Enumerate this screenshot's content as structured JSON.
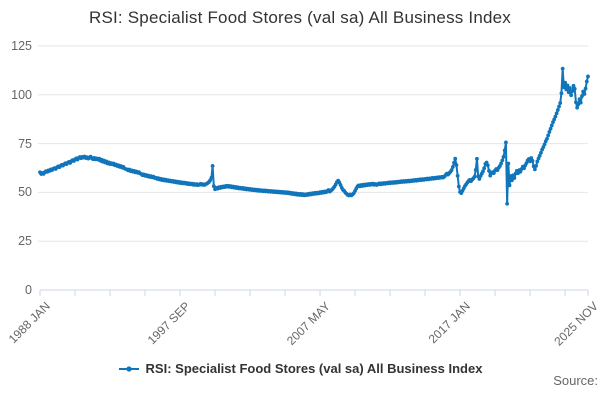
{
  "title": "RSI: Specialist Food Stores (val sa) All Business Index",
  "legend": {
    "label": "RSI: Specialist Food Stores (val sa) All Business Index"
  },
  "source_label": "Source:",
  "colors": {
    "series": "#1175bb",
    "grid": "#e6e6e6",
    "axis": "#ccd6eb",
    "axis_label": "#666666",
    "title_text": "#333333",
    "legend_text": "#333333",
    "source_text": "#666666"
  },
  "chart_data": {
    "type": "line",
    "title": "RSI: Specialist Food Stores (val sa) All Business Index",
    "xlabel": "",
    "ylabel": "",
    "frequency": "monthly",
    "x_range": [
      "1988 JAN",
      "2025 NOV"
    ],
    "ylim": [
      0,
      125
    ],
    "y_ticks": [
      0,
      25,
      50,
      75,
      100,
      125
    ],
    "grid": "horizontal",
    "legend_position": "bottom",
    "x_minor_tick_months": [
      0,
      29,
      58,
      87,
      116,
      145,
      174,
      203,
      232,
      261,
      290,
      319,
      348,
      377,
      406,
      435,
      454
    ],
    "x_tick_labels": [
      {
        "month": 0,
        "label": "1988 JAN"
      },
      {
        "month": 116,
        "label": "1997 SEP"
      },
      {
        "month": 232,
        "label": "2007 MAY"
      },
      {
        "month": 348,
        "label": "2017 JAN"
      },
      {
        "month": 454,
        "label": "2025 NOV"
      }
    ],
    "series": [
      {
        "name": "RSI: Specialist Food Stores (val sa) All Business Index",
        "values": [
          60.3,
          59.4,
          59.9,
          59.5,
          60.4,
          60.9,
          60.5,
          61.3,
          61.0,
          61.8,
          61.4,
          62.1,
          62.4,
          62.0,
          62.8,
          63.3,
          62.9,
          63.6,
          64.1,
          63.7,
          64.4,
          64.9,
          64.5,
          65.2,
          65.6,
          65.1,
          66.0,
          66.5,
          66.1,
          66.9,
          67.4,
          66.8,
          67.6,
          68.1,
          67.5,
          68.2,
          67.8,
          68.4,
          67.6,
          68.0,
          67.3,
          67.9,
          68.3,
          67.5,
          67.0,
          67.7,
          66.9,
          67.4,
          66.8,
          67.3,
          66.2,
          66.8,
          65.7,
          66.3,
          65.3,
          65.9,
          64.8,
          65.4,
          64.5,
          65.0,
          64.4,
          64.8,
          63.9,
          64.3,
          63.5,
          63.9,
          63.1,
          63.5,
          62.7,
          63.1,
          62.3,
          62.0,
          61.8,
          61.3,
          61.7,
          60.9,
          61.3,
          60.6,
          61.0,
          60.3,
          60.7,
          60.0,
          60.4,
          59.7,
          59.4,
          58.8,
          59.2,
          58.5,
          58.9,
          58.2,
          58.6,
          57.9,
          58.3,
          57.7,
          58.1,
          57.4,
          57.5,
          56.9,
          57.3,
          56.6,
          57.0,
          56.3,
          56.7,
          56.1,
          56.5,
          55.9,
          56.3,
          55.7,
          56.1,
          55.5,
          55.9,
          55.3,
          55.7,
          55.1,
          55.5,
          54.9,
          55.3,
          54.7,
          55.1,
          54.6,
          55.0,
          54.4,
          54.8,
          54.2,
          54.6,
          54.1,
          54.5,
          53.9,
          54.3,
          53.8,
          54.2,
          53.7,
          54.0,
          54.4,
          53.9,
          54.2,
          53.8,
          54.1,
          54.4,
          54.8,
          55.3,
          56.2,
          57.5,
          63.6,
          53.2,
          51.6,
          52.3,
          51.9,
          52.6,
          52.2,
          52.9,
          52.5,
          53.1,
          52.7,
          53.3,
          52.9,
          53.4,
          52.8,
          53.2,
          52.6,
          53.0,
          52.4,
          52.8,
          52.2,
          52.6,
          52.0,
          52.4,
          51.9,
          52.3,
          51.7,
          52.1,
          51.5,
          51.9,
          51.4,
          51.8,
          51.2,
          51.6,
          51.1,
          51.5,
          51.0,
          51.4,
          50.8,
          51.2,
          50.7,
          51.1,
          50.6,
          51.0,
          50.5,
          50.9,
          50.4,
          50.8,
          50.3,
          50.7,
          50.2,
          50.6,
          50.1,
          50.5,
          50.0,
          50.4,
          49.9,
          50.3,
          49.8,
          50.2,
          49.7,
          50.1,
          49.6,
          50.0,
          49.4,
          49.8,
          49.2,
          49.6,
          49.0,
          49.5,
          48.8,
          49.3,
          48.7,
          49.2,
          48.6,
          49.1,
          48.5,
          49.0,
          48.6,
          49.2,
          48.8,
          49.4,
          49.0,
          49.6,
          49.2,
          49.8,
          49.3,
          49.9,
          49.5,
          50.1,
          49.7,
          50.3,
          49.9,
          50.5,
          50.1,
          50.7,
          51.2,
          50.4,
          50.9,
          51.5,
          52.2,
          53.0,
          54.1,
          55.3,
          56.0,
          55.1,
          53.8,
          52.4,
          51.3,
          50.8,
          49.9,
          49.3,
          48.7,
          48.4,
          48.9,
          48.5,
          49.0,
          49.6,
          50.8,
          52.0,
          53.1,
          53.6,
          53.1,
          53.8,
          53.3,
          54.0,
          53.5,
          54.1,
          53.7,
          54.3,
          53.8,
          54.4,
          54.0,
          54.5,
          53.9,
          54.3,
          53.8,
          54.2,
          54.6,
          54.1,
          54.7,
          54.3,
          54.8,
          54.4,
          54.9,
          54.6,
          55.1,
          54.7,
          55.2,
          54.8,
          55.3,
          54.9,
          55.4,
          55.0,
          55.5,
          55.2,
          55.7,
          55.3,
          55.8,
          55.4,
          55.9,
          55.5,
          56.0,
          55.6,
          56.1,
          55.8,
          56.3,
          55.9,
          56.4,
          56.0,
          56.5,
          56.2,
          56.7,
          56.3,
          56.8,
          56.4,
          56.9,
          56.6,
          57.1,
          56.7,
          57.2,
          56.9,
          57.4,
          57.0,
          57.5,
          57.2,
          57.7,
          57.3,
          57.8,
          57.5,
          58.0,
          57.6,
          58.1,
          58.9,
          59.6,
          59.1,
          59.9,
          60.5,
          61.4,
          63.0,
          65.2,
          67.3,
          64.0,
          58.5,
          53.0,
          50.2,
          49.6,
          50.8,
          52.0,
          53.2,
          54.1,
          55.0,
          55.8,
          56.4,
          55.7,
          56.5,
          57.2,
          58.0,
          61.5,
          67.2,
          58.3,
          56.9,
          58.4,
          59.6,
          60.8,
          62.4,
          64.6,
          65.3,
          63.9,
          61.0,
          58.6,
          59.8,
          60.4,
          59.9,
          61.2,
          62.0,
          61.4,
          62.6,
          63.5,
          64.8,
          66.4,
          68.2,
          71.5,
          75.6,
          44.2,
          64.8,
          53.6,
          58.4,
          56.2,
          58.8,
          57.4,
          59.6,
          61.0,
          59.8,
          61.4,
          60.6,
          62.0,
          63.2,
          62.4,
          63.8,
          65.0,
          66.3,
          67.1,
          65.9,
          67.6,
          66.2,
          63.4,
          61.8,
          63.6,
          65.8,
          67.4,
          68.8,
          70.3,
          71.9,
          73.2,
          74.6,
          76.2,
          77.5,
          79.2,
          81.0,
          82.6,
          84.3,
          86.0,
          87.4,
          88.9,
          90.5,
          92.2,
          94.0,
          95.8,
          100.8,
          113.4,
          103.9,
          106.2,
          102.7,
          104.8,
          101.3,
          103.5,
          99.8,
          101.9,
          104.6,
          103.1,
          96.2,
          93.4,
          95.1,
          97.8,
          96.0,
          99.3,
          101.7,
          100.4,
          103.2,
          106.8,
          109.4
        ]
      }
    ]
  }
}
